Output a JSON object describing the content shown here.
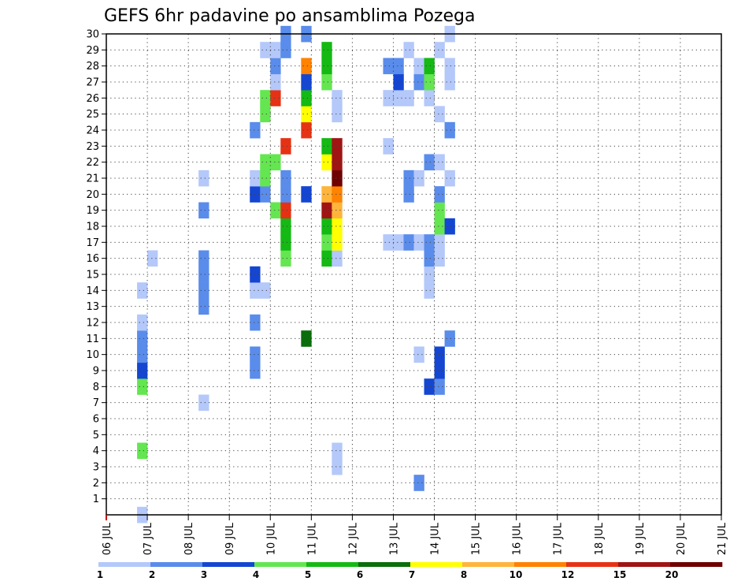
{
  "chart_data": {
    "type": "heatmap",
    "title": "GEFS 6hr padavine po ansamblima Pozega",
    "xlabel": "",
    "ylabel": "",
    "x_tick_labels": [
      "06 JUL",
      "07 JUL",
      "08 JUL",
      "09 JUL",
      "10 JUL",
      "11 JUL",
      "12 JUL",
      "13 JUL",
      "14 JUL",
      "15 JUL",
      "16 JUL",
      "17 JUL",
      "18 JUL",
      "19 JUL",
      "20 JUL",
      "21 JUL"
    ],
    "y_tick_labels": [
      "1",
      "2",
      "3",
      "4",
      "5",
      "6",
      "7",
      "8",
      "9",
      "10",
      "11",
      "12",
      "13",
      "14",
      "15",
      "16",
      "17",
      "18",
      "19",
      "20",
      "21",
      "22",
      "23",
      "24",
      "25",
      "26",
      "27",
      "28",
      "29",
      "30"
    ],
    "x_range": [
      0,
      15
    ],
    "y_range": [
      0,
      30
    ],
    "grid": true,
    "colorbar": {
      "placement": "bottom",
      "labels": [
        "1",
        "2",
        "3",
        "4",
        "5",
        "6",
        "7",
        "8",
        "10",
        "12",
        "15",
        "20"
      ],
      "colors": [
        "#b4c8fa",
        "#5a8ceb",
        "#1446d2",
        "#64e650",
        "#14b914",
        "#0a6e0a",
        "#ffff00",
        "#ffb43c",
        "#ff8200",
        "#e63214",
        "#a01414",
        "#6e0000"
      ]
    },
    "cell_units": "each cell = 6 h step (x) by ensemble member (y); value = colorbar class index 0-11",
    "cells": [
      [
        3,
        0,
        0
      ],
      [
        3,
        4,
        3
      ],
      [
        3,
        8,
        3
      ],
      [
        3,
        9,
        2
      ],
      [
        3,
        10,
        1
      ],
      [
        3,
        11,
        1
      ],
      [
        3,
        12,
        0
      ],
      [
        3,
        14,
        0
      ],
      [
        4,
        16,
        0
      ],
      [
        9,
        7,
        0
      ],
      [
        9,
        13,
        1
      ],
      [
        9,
        14,
        1
      ],
      [
        9,
        15,
        1
      ],
      [
        9,
        16,
        1
      ],
      [
        9,
        19,
        1
      ],
      [
        9,
        21,
        0
      ],
      [
        14,
        14,
        0
      ],
      [
        14,
        9,
        1
      ],
      [
        14,
        10,
        1
      ],
      [
        14,
        12,
        1
      ],
      [
        14,
        15,
        2
      ],
      [
        14,
        20,
        2
      ],
      [
        14,
        21,
        0
      ],
      [
        14,
        24,
        1
      ],
      [
        15,
        14,
        0
      ],
      [
        15,
        20,
        1
      ],
      [
        15,
        21,
        3
      ],
      [
        15,
        22,
        3
      ],
      [
        15,
        25,
        3
      ],
      [
        15,
        26,
        3
      ],
      [
        15,
        29,
        0
      ],
      [
        16,
        19,
        3
      ],
      [
        16,
        22,
        3
      ],
      [
        16,
        26,
        9
      ],
      [
        16,
        27,
        0
      ],
      [
        16,
        28,
        1
      ],
      [
        16,
        29,
        0
      ],
      [
        17,
        16,
        3
      ],
      [
        17,
        17,
        4
      ],
      [
        17,
        18,
        4
      ],
      [
        17,
        19,
        9
      ],
      [
        17,
        20,
        1
      ],
      [
        17,
        21,
        1
      ],
      [
        17,
        23,
        9
      ],
      [
        17,
        29,
        1
      ],
      [
        17,
        30,
        1
      ],
      [
        19,
        11,
        5
      ],
      [
        19,
        20,
        2
      ],
      [
        19,
        24,
        9
      ],
      [
        19,
        25,
        6
      ],
      [
        19,
        26,
        4
      ],
      [
        19,
        27,
        2
      ],
      [
        19,
        28,
        8
      ],
      [
        19,
        30,
        1
      ],
      [
        21,
        16,
        4
      ],
      [
        21,
        17,
        3
      ],
      [
        21,
        18,
        4
      ],
      [
        21,
        19,
        10
      ],
      [
        21,
        20,
        7
      ],
      [
        21,
        22,
        6
      ],
      [
        21,
        23,
        4
      ],
      [
        21,
        27,
        3
      ],
      [
        21,
        28,
        4
      ],
      [
        21,
        29,
        4
      ],
      [
        22,
        3,
        0
      ],
      [
        22,
        4,
        0
      ],
      [
        22,
        16,
        0
      ],
      [
        22,
        17,
        6
      ],
      [
        22,
        18,
        6
      ],
      [
        22,
        19,
        7
      ],
      [
        22,
        20,
        8
      ],
      [
        22,
        21,
        11
      ],
      [
        22,
        22,
        10
      ],
      [
        22,
        23,
        10
      ],
      [
        22,
        25,
        0
      ],
      [
        22,
        26,
        0
      ],
      [
        27,
        17,
        0
      ],
      [
        27,
        23,
        0
      ],
      [
        27,
        26,
        0
      ],
      [
        27,
        28,
        1
      ],
      [
        28,
        17,
        0
      ],
      [
        28,
        26,
        0
      ],
      [
        28,
        27,
        2
      ],
      [
        28,
        28,
        1
      ],
      [
        29,
        17,
        1
      ],
      [
        29,
        20,
        1
      ],
      [
        29,
        21,
        1
      ],
      [
        29,
        26,
        0
      ],
      [
        29,
        29,
        0
      ],
      [
        30,
        2,
        1
      ],
      [
        30,
        10,
        0
      ],
      [
        30,
        17,
        0
      ],
      [
        30,
        21,
        0
      ],
      [
        30,
        27,
        1
      ],
      [
        30,
        28,
        0
      ],
      [
        31,
        8,
        2
      ],
      [
        31,
        14,
        0
      ],
      [
        31,
        15,
        0
      ],
      [
        31,
        16,
        1
      ],
      [
        31,
        17,
        1
      ],
      [
        31,
        22,
        1
      ],
      [
        31,
        26,
        0
      ],
      [
        31,
        27,
        3
      ],
      [
        31,
        28,
        4
      ],
      [
        32,
        8,
        1
      ],
      [
        32,
        9,
        2
      ],
      [
        32,
        10,
        2
      ],
      [
        32,
        16,
        0
      ],
      [
        32,
        17,
        0
      ],
      [
        32,
        18,
        3
      ],
      [
        32,
        19,
        3
      ],
      [
        32,
        20,
        1
      ],
      [
        32,
        22,
        0
      ],
      [
        32,
        25,
        0
      ],
      [
        32,
        29,
        0
      ],
      [
        33,
        11,
        1
      ],
      [
        33,
        18,
        2
      ],
      [
        33,
        21,
        0
      ],
      [
        33,
        24,
        1
      ],
      [
        33,
        27,
        0
      ],
      [
        33,
        28,
        0
      ],
      [
        33,
        30,
        0
      ]
    ]
  }
}
